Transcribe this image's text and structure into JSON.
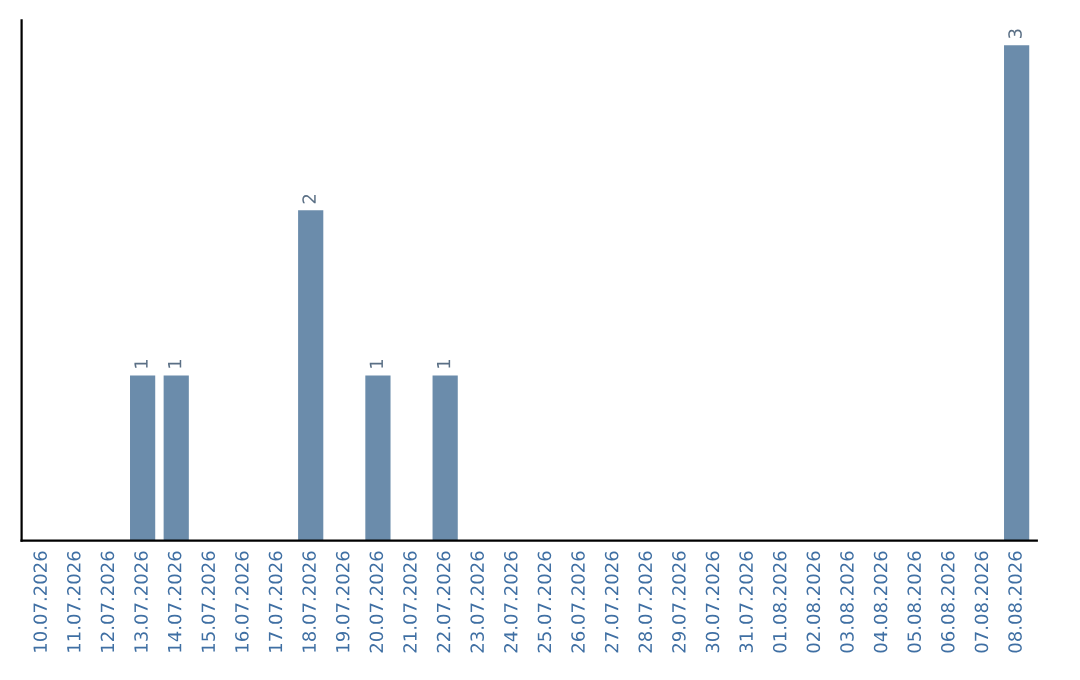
{
  "chart_data": {
    "type": "bar",
    "categories": [
      "10.07.2026",
      "11.07.2026",
      "12.07.2026",
      "13.07.2026",
      "14.07.2026",
      "15.07.2026",
      "16.07.2026",
      "17.07.2026",
      "18.07.2026",
      "19.07.2026",
      "20.07.2026",
      "21.07.2026",
      "22.07.2026",
      "23.07.2026",
      "24.07.2026",
      "25.07.2026",
      "26.07.2026",
      "27.07.2026",
      "28.07.2026",
      "29.07.2026",
      "30.07.2026",
      "31.07.2026",
      "01.08.2026",
      "02.08.2026",
      "03.08.2026",
      "04.08.2026",
      "05.08.2026",
      "06.08.2026",
      "07.08.2026",
      "08.08.2026"
    ],
    "values": [
      0,
      0,
      0,
      1,
      1,
      0,
      0,
      0,
      2,
      0,
      1,
      0,
      1,
      0,
      0,
      0,
      0,
      0,
      0,
      0,
      0,
      0,
      0,
      0,
      0,
      0,
      0,
      0,
      0,
      3
    ],
    "color": "#6b8cab",
    "value_labels": [
      null,
      null,
      null,
      "1",
      "1",
      null,
      null,
      null,
      "2",
      null,
      "1",
      null,
      "1",
      null,
      null,
      null,
      null,
      null,
      null,
      null,
      null,
      null,
      null,
      null,
      null,
      null,
      null,
      null,
      null,
      "3"
    ],
    "grid": false,
    "legend": false,
    "tick_labels": "x"
  }
}
